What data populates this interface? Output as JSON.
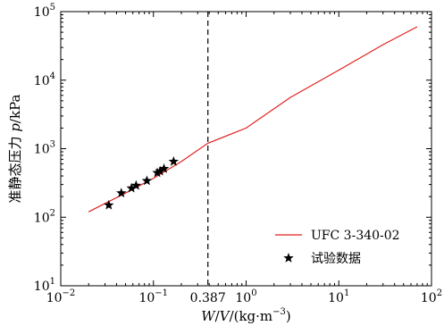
{
  "chart_data": {
    "type": "scatter",
    "x_scale": "log",
    "y_scale": "log",
    "xlim": [
      0.01,
      100
    ],
    "ylim": [
      10,
      100000
    ],
    "grid": false,
    "legend_position": "bottom-right",
    "xlabel": {
      "var": "W",
      "sep1": "/",
      "var2": "V",
      "rest": "/(kg·m",
      "exp": "−3",
      "close": ")"
    },
    "ylabel": {
      "text": "准静态压力 ",
      "var": "p",
      "unit": "/kPa"
    },
    "x_ticks": [
      {
        "value": 0.01,
        "base": "10",
        "exp": "−2"
      },
      {
        "value": 0.1,
        "base": "10",
        "exp": "−1"
      },
      {
        "value": 1,
        "base": "10",
        "exp": "0"
      },
      {
        "value": 10,
        "base": "10",
        "exp": "1"
      },
      {
        "value": 100,
        "base": "10",
        "exp": "2"
      }
    ],
    "y_ticks": [
      {
        "value": 10,
        "base": "10",
        "exp": "1"
      },
      {
        "value": 100,
        "base": "10",
        "exp": "2"
      },
      {
        "value": 1000,
        "base": "10",
        "exp": "3"
      },
      {
        "value": 10000,
        "base": "10",
        "exp": "4"
      },
      {
        "value": 100000,
        "base": "10",
        "exp": "5"
      }
    ],
    "reference_line": {
      "x": 0.387,
      "label": "0.387",
      "style": "dashed"
    },
    "series": [
      {
        "name": "UFC 3-340-02",
        "kind": "line",
        "color": "#e0221e",
        "points": [
          [
            0.02,
            120
          ],
          [
            0.05,
            225
          ],
          [
            0.1,
            370
          ],
          [
            0.2,
            650
          ],
          [
            0.387,
            1200
          ],
          [
            1,
            2000
          ],
          [
            3,
            5600
          ],
          [
            10,
            14000
          ],
          [
            30,
            33000
          ],
          [
            70,
            60000
          ]
        ]
      },
      {
        "name": "试验数据",
        "kind": "scatter",
        "marker": "star",
        "color": "#000000",
        "points": [
          [
            0.033,
            150
          ],
          [
            0.045,
            225
          ],
          [
            0.058,
            265
          ],
          [
            0.065,
            290
          ],
          [
            0.085,
            340
          ],
          [
            0.11,
            445
          ],
          [
            0.118,
            470
          ],
          [
            0.13,
            510
          ],
          [
            0.165,
            650
          ]
        ]
      }
    ]
  }
}
